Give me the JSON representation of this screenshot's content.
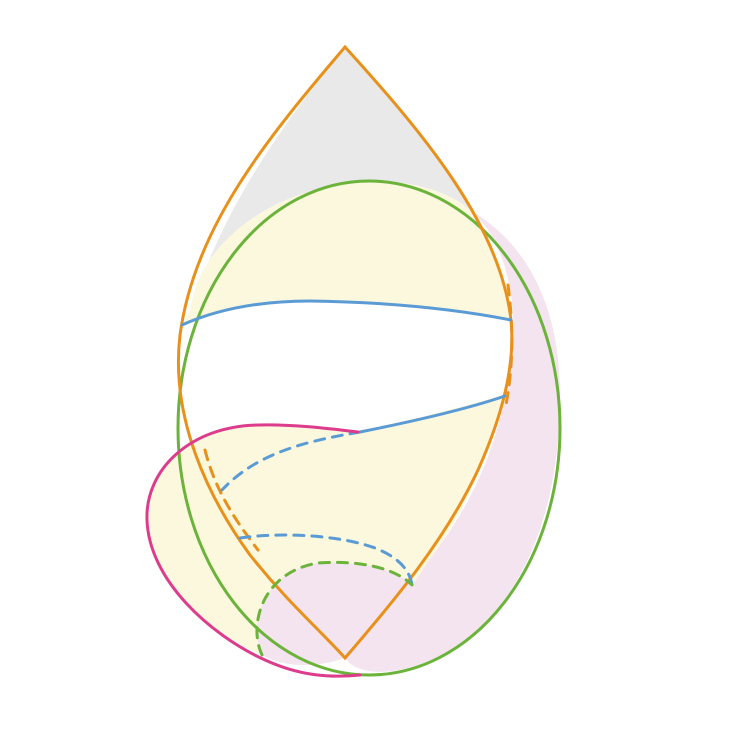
{
  "colors": {
    "background": "#ffffff",
    "grey_region": "#e9e9e9",
    "yellow_region": "#fbf8dd",
    "pink_region": "#f4e4ef",
    "white_band": "#ffffff",
    "orange_curve": "#e8901a",
    "green_curve": "#6bb33a",
    "blue_curve": "#5b9bd5",
    "magenta_curve": "#dd3c8c"
  },
  "curves": [
    {
      "name": "orange-teardrop",
      "color": "orange_curve",
      "style": "solid"
    },
    {
      "name": "green-circle",
      "color": "green_curve",
      "style": "solid"
    },
    {
      "name": "blue-upper-arc",
      "color": "blue_curve",
      "style": "solid"
    },
    {
      "name": "blue-lower-arc",
      "color": "blue_curve",
      "style": "solid-and-dashed"
    },
    {
      "name": "magenta-lobe",
      "color": "magenta_curve",
      "style": "solid"
    },
    {
      "name": "blue-small-loop",
      "color": "blue_curve",
      "style": "dashed"
    },
    {
      "name": "green-small-loop",
      "color": "green_curve",
      "style": "dashed"
    }
  ]
}
